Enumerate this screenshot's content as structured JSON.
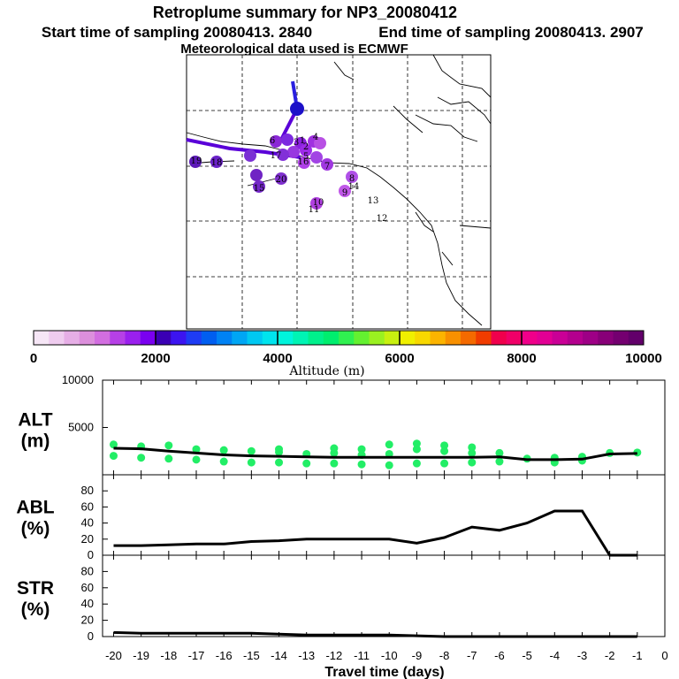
{
  "header": {
    "title": "Retroplume summary for NP3_20080412",
    "start": "Start time of sampling 20080413.  2840",
    "end": "End time of sampling 20080413.  2907",
    "met": "Meteorological data used is ECMWF"
  },
  "colorbar": {
    "label": "Altitude (m)",
    "min": 0,
    "max": 10000,
    "tick_labels": [
      "0",
      "2000",
      "4000",
      "6000",
      "8000",
      "10000"
    ],
    "colors": [
      "#f6e6f6",
      "#efccef",
      "#e6aee6",
      "#dc8fdc",
      "#d26ee0",
      "#b640e6",
      "#9a20ee",
      "#7a00f0",
      "#3a00b4",
      "#3c14f0",
      "#1e3cf4",
      "#005ef0",
      "#0082f4",
      "#00a6f4",
      "#00c8f2",
      "#00e4ee",
      "#00f4dc",
      "#00f4b4",
      "#00f08c",
      "#00ee6e",
      "#30f050",
      "#64f030",
      "#9af020",
      "#c8f010",
      "#f0f000",
      "#f8d800",
      "#fcb400",
      "#f89000",
      "#f46a00",
      "#f03c00",
      "#f0004c",
      "#f00068",
      "#f0008a",
      "#e20094",
      "#ca0096",
      "#b4008e",
      "#9e0086",
      "#880078",
      "#740070",
      "#62006a"
    ]
  },
  "map": {
    "trajectory_numbers": [
      "1",
      "2",
      "3",
      "4",
      "5",
      "6",
      "7",
      "8",
      "9",
      "10",
      "11",
      "12",
      "13",
      "14",
      "15",
      "16",
      "17",
      "18",
      "19",
      "20"
    ]
  },
  "chart_data": [
    {
      "type": "line+scatter",
      "panel": "ALT",
      "ylabel_top": "ALT",
      "ylabel_bottom": "(m)",
      "ylim": [
        0,
        10000
      ],
      "yticks": [
        "10000",
        "5000"
      ],
      "ytick_values": [
        10000,
        5000
      ],
      "x": [
        -20,
        -19,
        -18,
        -17,
        -16,
        -15,
        -14,
        -13,
        -12,
        -11,
        -10,
        -9,
        -8,
        -7,
        -6,
        -5,
        -4,
        -3,
        -2,
        -1
      ],
      "median": [
        2800,
        2750,
        2500,
        2300,
        2100,
        2000,
        1950,
        1900,
        1850,
        1850,
        1850,
        1850,
        1850,
        1850,
        1900,
        1600,
        1600,
        1650,
        2200,
        2250
      ],
      "points": [
        [
          -20,
          3200
        ],
        [
          -20,
          2000
        ],
        [
          -19,
          3000
        ],
        [
          -19,
          1800
        ],
        [
          -18,
          3100
        ],
        [
          -18,
          1700
        ],
        [
          -17,
          2700
        ],
        [
          -17,
          1600
        ],
        [
          -16,
          2600
        ],
        [
          -16,
          1400
        ],
        [
          -15,
          2500
        ],
        [
          -15,
          1300
        ],
        [
          -14,
          2700
        ],
        [
          -14,
          2400
        ],
        [
          -14,
          1300
        ],
        [
          -13,
          2200
        ],
        [
          -13,
          1200
        ],
        [
          -12,
          2800
        ],
        [
          -12,
          2300
        ],
        [
          -12,
          1200
        ],
        [
          -11,
          2700
        ],
        [
          -11,
          2100
        ],
        [
          -11,
          1100
        ],
        [
          -10,
          3200
        ],
        [
          -10,
          2200
        ],
        [
          -10,
          1000
        ],
        [
          -9,
          3300
        ],
        [
          -9,
          2700
        ],
        [
          -9,
          1200
        ],
        [
          -8,
          3100
        ],
        [
          -8,
          2500
        ],
        [
          -8,
          1200
        ],
        [
          -7,
          2900
        ],
        [
          -7,
          2300
        ],
        [
          -7,
          1300
        ],
        [
          -6,
          2300
        ],
        [
          -6,
          1400
        ],
        [
          -5,
          1700
        ],
        [
          -4,
          1800
        ],
        [
          -4,
          1300
        ],
        [
          -3,
          1900
        ],
        [
          -3,
          1500
        ],
        [
          -2,
          2300
        ],
        [
          -1,
          2350
        ]
      ]
    },
    {
      "type": "line",
      "panel": "ABL",
      "ylabel_top": "ABL",
      "ylabel_bottom": "(%)",
      "ylim": [
        0,
        100
      ],
      "yticks": [
        "80",
        "60",
        "40",
        "20",
        "0"
      ],
      "ytick_values": [
        80,
        60,
        40,
        20,
        0
      ],
      "x": [
        -20,
        -19,
        -18,
        -17,
        -16,
        -15,
        -14,
        -13,
        -12,
        -11,
        -10,
        -9,
        -8,
        -7,
        -6,
        -5,
        -4,
        -3,
        -2,
        -1
      ],
      "values": [
        12,
        12,
        13,
        14,
        14,
        17,
        18,
        20,
        20,
        20,
        20,
        15,
        22,
        35,
        31,
        40,
        55,
        55,
        0,
        0
      ]
    },
    {
      "type": "line",
      "panel": "STR",
      "ylabel_top": "STR",
      "ylabel_bottom": "(%)",
      "ylim": [
        0,
        100
      ],
      "yticks": [
        "80",
        "60",
        "40",
        "20",
        "0"
      ],
      "ytick_values": [
        80,
        60,
        40,
        20,
        0
      ],
      "x": [
        -20,
        -19,
        -18,
        -17,
        -16,
        -15,
        -14,
        -13,
        -12,
        -11,
        -10,
        -9,
        -8,
        -7,
        -6,
        -5,
        -4,
        -3,
        -2,
        -1
      ],
      "values": [
        5,
        4,
        4,
        4,
        4,
        4,
        3,
        2,
        2,
        2,
        2,
        1,
        0,
        0,
        0,
        0,
        0,
        0,
        0,
        0
      ]
    }
  ],
  "xaxis": {
    "label": "Travel time (days)",
    "ticks": [
      -20,
      -19,
      -18,
      -17,
      -16,
      -15,
      -14,
      -13,
      -12,
      -11,
      -10,
      -9,
      -8,
      -7,
      -6,
      -5,
      -4,
      -3,
      -2,
      -1,
      0
    ],
    "tick_labels": [
      "-20",
      "-19",
      "-18",
      "-17",
      "-16",
      "-15",
      "-14",
      "-13",
      "-12",
      "-11",
      "-10",
      "-9",
      "-8",
      "-7",
      "-6",
      "-5",
      "-4",
      "-3",
      "-2",
      "-1",
      "0"
    ]
  },
  "colors": {
    "point": "#22ee66",
    "line": "#000000",
    "trajectory": "#5a00d8"
  }
}
